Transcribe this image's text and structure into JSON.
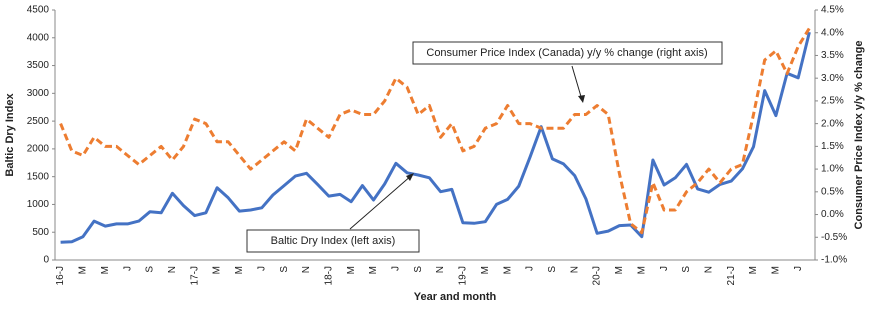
{
  "chart_data": {
    "type": "line",
    "xlabel": "Year and month",
    "ylabel": "Baltic Dry Index",
    "y2label": "Consumer Price Index y/y % change",
    "categories": [
      "16-J",
      null,
      "M",
      null,
      "M",
      null,
      "J",
      null,
      "S",
      null,
      "N",
      null,
      "17-J",
      null,
      "M",
      null,
      "M",
      null,
      "J",
      null,
      "S",
      null,
      "N",
      null,
      "18-J",
      null,
      "M",
      null,
      "M",
      null,
      "J",
      null,
      "S",
      null,
      "N",
      null,
      "19-J",
      null,
      "M",
      null,
      "M",
      null,
      "J",
      null,
      "S",
      null,
      "N",
      null,
      "20-J",
      null,
      "M",
      null,
      "M",
      null,
      "J",
      null,
      "S",
      null,
      "N",
      null,
      "21-J",
      null,
      "M",
      null,
      "M",
      null,
      "J",
      null
    ],
    "series": [
      {
        "name": "Baltic Dry Index (left axis)",
        "color": "#4472c4",
        "dashed": false,
        "values": [
          320,
          330,
          420,
          700,
          610,
          650,
          650,
          700,
          870,
          850,
          1200,
          980,
          800,
          850,
          1300,
          1120,
          880,
          900,
          940,
          1170,
          1340,
          1510,
          1560,
          1360,
          1150,
          1180,
          1050,
          1340,
          1080,
          1370,
          1740,
          1570,
          1530,
          1480,
          1230,
          1270,
          670,
          660,
          690,
          1000,
          1090,
          1330,
          1850,
          2400,
          1820,
          1730,
          1520,
          1100,
          480,
          520,
          620,
          630,
          420,
          1800,
          1350,
          1480,
          1720,
          1280,
          1220,
          1360,
          1420,
          1640,
          2040,
          3050,
          2600,
          3360,
          3280,
          4100
        ]
      },
      {
        "name": "Consumer Price Index (Canada) y/y % change (right axis)",
        "color": "#ed7d31",
        "dashed": true,
        "axis": "y2",
        "values": [
          2.0,
          1.4,
          1.3,
          1.7,
          1.5,
          1.5,
          1.3,
          1.1,
          1.3,
          1.5,
          1.2,
          1.5,
          2.1,
          2.0,
          1.6,
          1.6,
          1.3,
          1.0,
          1.2,
          1.4,
          1.6,
          1.4,
          2.1,
          1.9,
          1.7,
          2.2,
          2.3,
          2.2,
          2.2,
          2.5,
          3.0,
          2.8,
          2.2,
          2.4,
          1.7,
          2.0,
          1.4,
          1.5,
          1.9,
          2.0,
          2.4,
          2.0,
          2.0,
          1.9,
          1.9,
          1.9,
          2.2,
          2.2,
          2.4,
          2.2,
          0.9,
          -0.2,
          -0.4,
          0.7,
          0.1,
          0.1,
          0.5,
          0.7,
          1.0,
          0.7,
          1.0,
          1.1,
          2.2,
          3.4,
          3.6,
          3.1,
          3.7,
          4.1
        ]
      }
    ],
    "ylim": [
      0,
      4500
    ],
    "yticks": [
      0,
      500,
      1000,
      1500,
      2000,
      2500,
      3000,
      3500,
      4000,
      4500
    ],
    "y2lim": [
      -1.0,
      4.5
    ],
    "y2ticks": [
      {
        "value": -1.0,
        "label": "-1.0%"
      },
      {
        "value": -0.5,
        "label": "-0.5%"
      },
      {
        "value": 0.0,
        "label": "0.0%"
      },
      {
        "value": 0.5,
        "label": "0.5%"
      },
      {
        "value": 1.0,
        "label": "1.0%"
      },
      {
        "value": 1.5,
        "label": "1.5%"
      },
      {
        "value": 2.0,
        "label": "2.0%"
      },
      {
        "value": 2.5,
        "label": "2.5%"
      },
      {
        "value": 3.0,
        "label": "3.0%"
      },
      {
        "value": 3.5,
        "label": "3.5%"
      },
      {
        "value": 4.0,
        "label": "4.0%"
      },
      {
        "value": 4.5,
        "label": "4.5%"
      }
    ]
  }
}
